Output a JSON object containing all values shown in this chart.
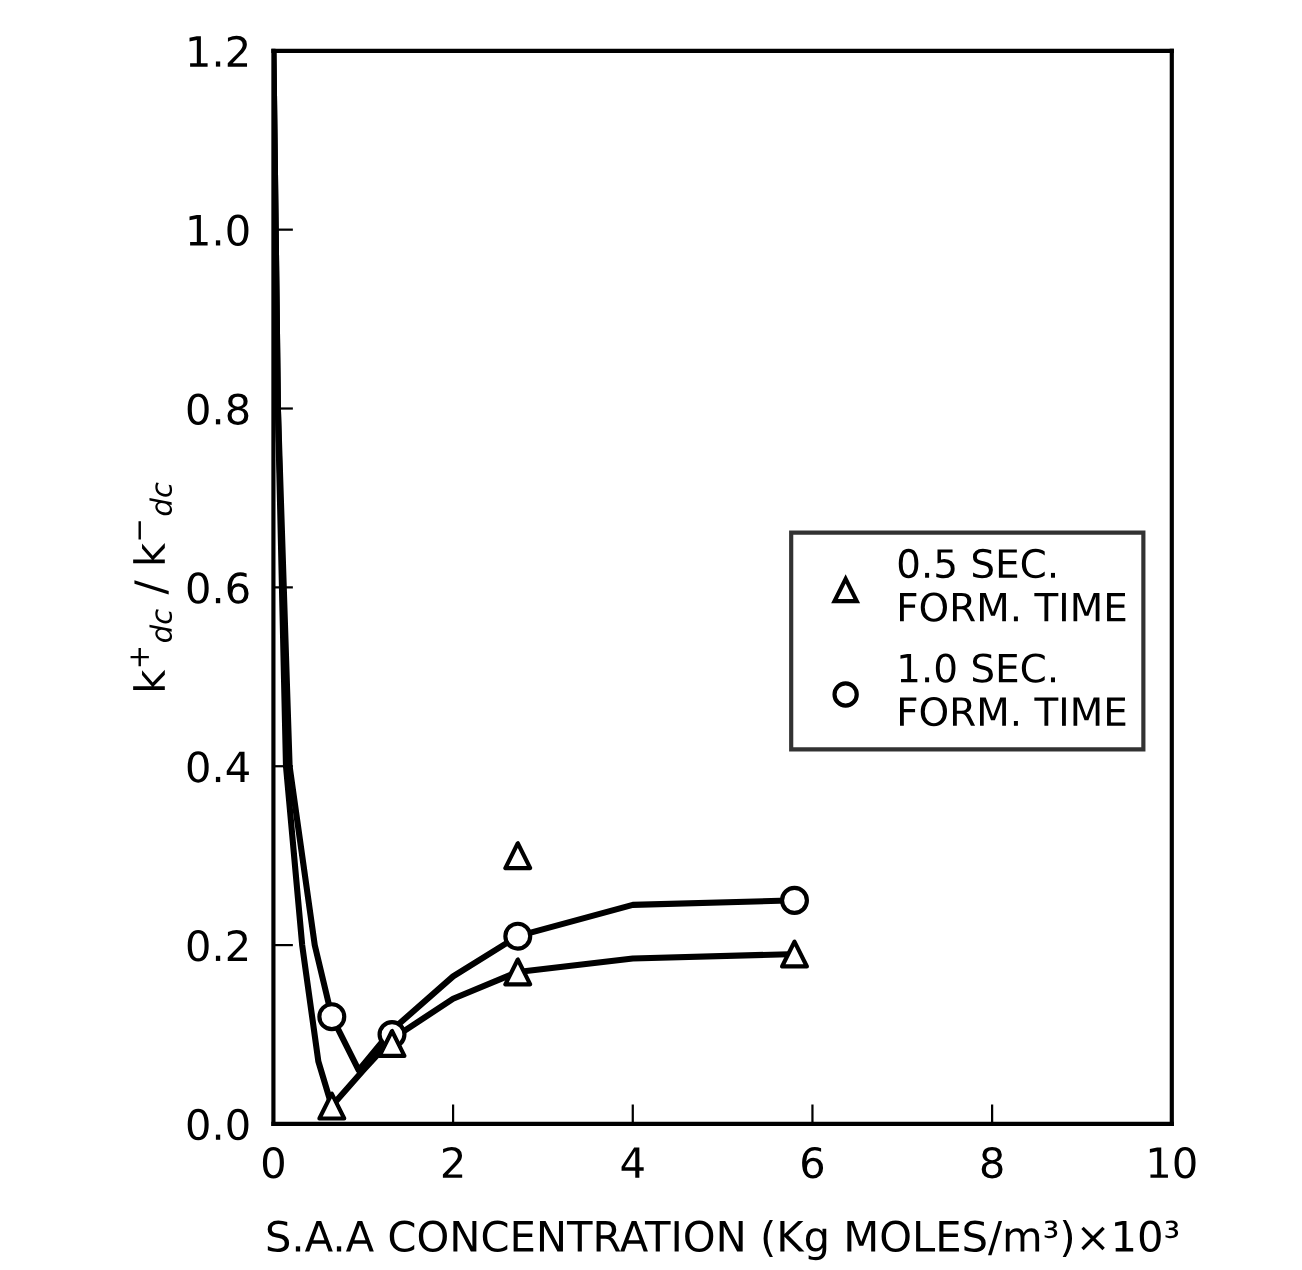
{
  "chart_data": {
    "type": "scatter",
    "xlabel": "S.A.A CONCENTRATION (Kg MOLES/m³)×10³",
    "ylabel": "k$^{+}$$_{dc}$ / k$^{−}$$_{dc}$",
    "xlim": [
      0,
      10
    ],
    "ylim": [
      0,
      1.2
    ],
    "xticks": [
      0,
      2,
      4,
      6,
      8,
      10
    ],
    "yticks": [
      {
        "value": 0,
        "label": "0.0"
      },
      {
        "value": 0.2,
        "label": "0.2"
      },
      {
        "value": 0.4,
        "label": "0.4"
      },
      {
        "value": 0.6,
        "label": "0.6"
      },
      {
        "value": 0.8,
        "label": "0.8"
      },
      {
        "value": 1.0,
        "label": "1.0"
      },
      {
        "value": 1.2,
        "label": "1.2"
      }
    ],
    "grid": false,
    "legend": "right",
    "series": [
      {
        "name": "0.5 SEC.\nFORM. TIME",
        "marker": "triangle",
        "color": "#000000",
        "x": [
          0.65,
          1.32,
          2.72,
          2.72,
          5.8
        ],
        "values": [
          0.02,
          0.09,
          0.17,
          0.3,
          0.19
        ]
      },
      {
        "name": "1.0 SEC.\nFORM. TIME",
        "marker": "circle",
        "color": "#000000",
        "x": [
          0.65,
          1.32,
          2.72,
          5.8
        ],
        "values": [
          0.12,
          0.1,
          0.21,
          0.25
        ]
      },
      {
        "type": "line",
        "marker": "none",
        "line_style": "solid",
        "color": "#000000",
        "x": [
          0,
          0.05,
          0.14,
          0.32,
          0.5,
          0.65,
          1.0,
          1.32,
          2.0,
          2.72,
          4.0,
          5.8
        ],
        "values": [
          1.2,
          0.8,
          0.4,
          0.2,
          0.07,
          0.02,
          0.06,
          0.095,
          0.14,
          0.17,
          0.185,
          0.19
        ]
      },
      {
        "type": "line",
        "marker": "none",
        "line_style": "solid",
        "color": "#000000",
        "x": [
          0,
          0.05,
          0.18,
          0.46,
          0.65,
          0.95,
          1.32,
          2.0,
          2.72,
          4.0,
          5.8
        ],
        "values": [
          1.2,
          0.8,
          0.4,
          0.2,
          0.12,
          0.06,
          0.105,
          0.165,
          0.21,
          0.245,
          0.25
        ]
      }
    ]
  }
}
